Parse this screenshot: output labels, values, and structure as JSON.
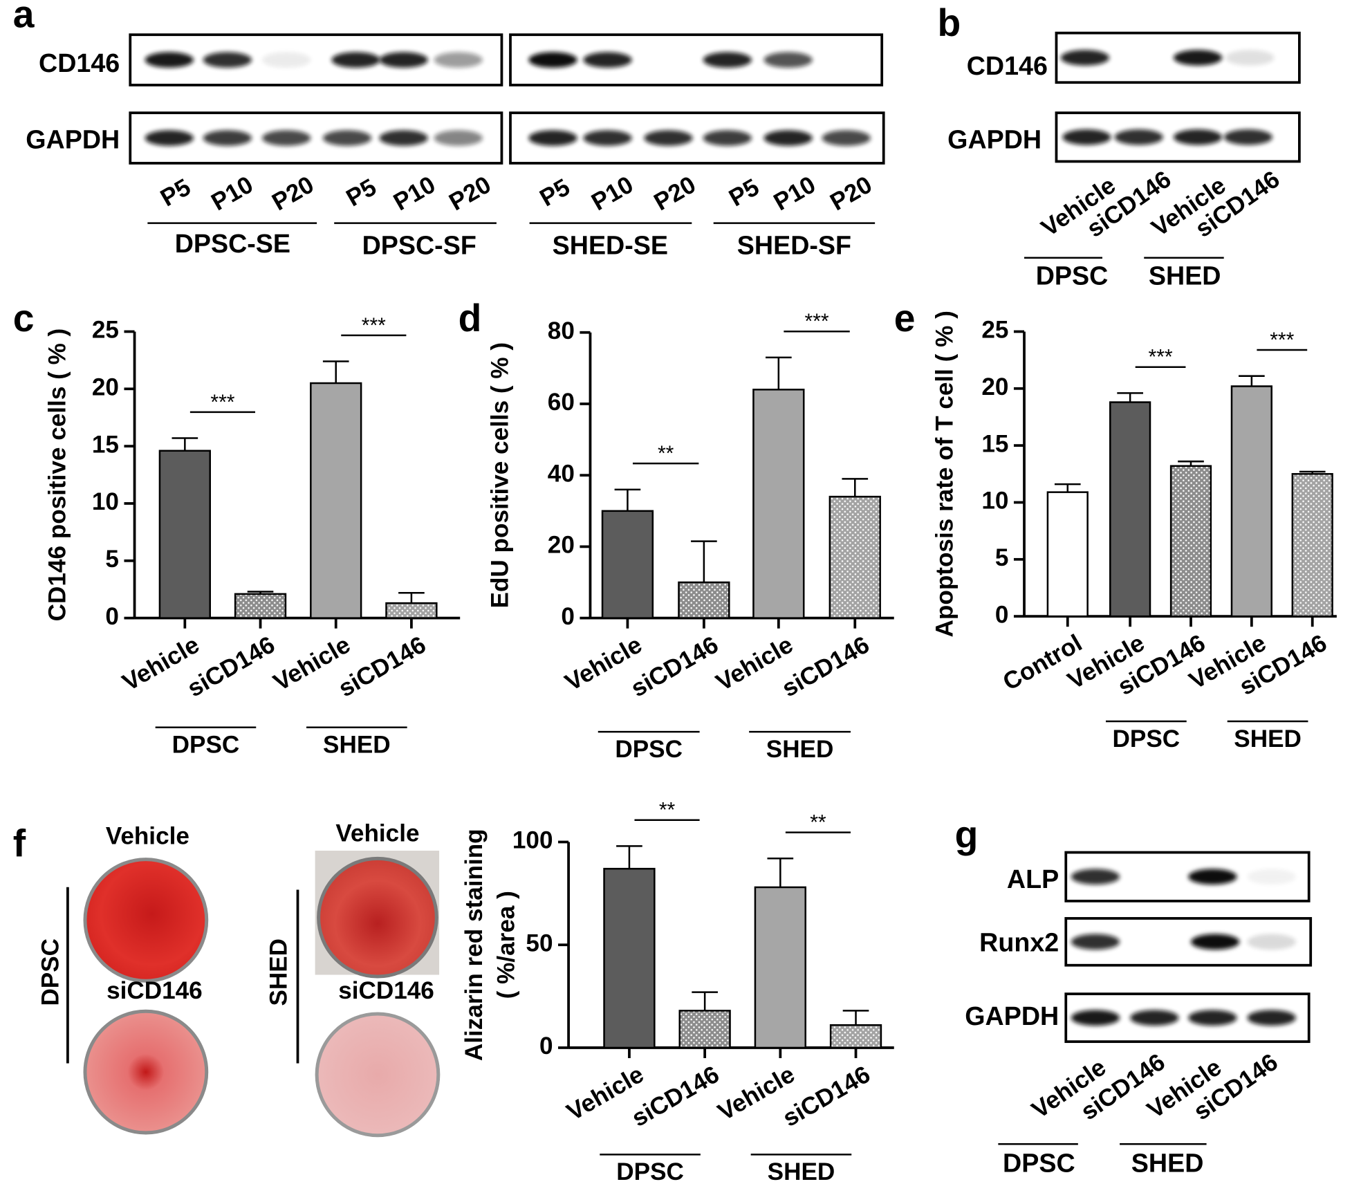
{
  "panel_labels": [
    "a",
    "b",
    "c",
    "d",
    "e",
    "f",
    "g"
  ],
  "blot_a": {
    "rows": [
      "CD146",
      "GAPDH"
    ],
    "lanes": [
      "P5",
      "P10",
      "P20",
      "P5",
      "P10",
      "P20",
      "P5",
      "P10",
      "P20",
      "P5",
      "P10",
      "P20"
    ],
    "groups": [
      "DPSC-SE",
      "DPSC-SF",
      "SHED-SE",
      "SHED-SF"
    ]
  },
  "blot_b": {
    "rows": [
      "CD146",
      "GAPDH"
    ],
    "lanes": [
      "Vehicle",
      "siCD146",
      "Vehicle",
      "siCD146"
    ],
    "groups": [
      "DPSC",
      "SHED"
    ]
  },
  "blot_g": {
    "rows": [
      "ALP",
      "Runx2",
      "GAPDH"
    ],
    "lanes": [
      "Vehicle",
      "siCD146",
      "Vehicle",
      "siCD146"
    ],
    "groups": [
      "DPSC",
      "SHED"
    ]
  },
  "staining": {
    "groups": [
      "DPSC",
      "SHED"
    ],
    "conditions": [
      [
        "Vehicle",
        "siCD146"
      ],
      [
        "Vehicle",
        "siCD146"
      ]
    ]
  },
  "chart_data": [
    {
      "type": "bar",
      "ylabel": [
        "CD146 positive cells ( % )"
      ],
      "categories": [
        "Vehicle",
        "siCD146",
        "Vehicle",
        "siCD146"
      ],
      "values": [
        14.6,
        2.1,
        20.5,
        1.3
      ],
      "errors": [
        1.1,
        0.2,
        1.9,
        0.9
      ],
      "colors": [
        "#5c5c5c",
        "#8c8c8c",
        "#a6a6a6",
        "#a3a3a3"
      ],
      "dotted": [
        false,
        true,
        false,
        true
      ],
      "groups": [
        {
          "label": "DPSC",
          "span": [
            0,
            1
          ]
        },
        {
          "label": "SHED",
          "span": [
            2,
            3
          ]
        }
      ],
      "annotations": [
        {
          "text": "***",
          "span": [
            0,
            1
          ]
        },
        {
          "text": "***",
          "span": [
            2,
            3
          ]
        }
      ],
      "ylim": [
        0,
        25
      ],
      "yticks": [
        0,
        5,
        10,
        15,
        20,
        25
      ]
    },
    {
      "type": "bar",
      "ylabel": [
        "EdU positive cells ( % )"
      ],
      "categories": [
        "Vehicle",
        "siCD146",
        "Vehicle",
        "siCD146"
      ],
      "values": [
        30,
        10,
        64,
        34
      ],
      "errors": [
        6,
        11.5,
        9,
        5
      ],
      "colors": [
        "#5c5c5c",
        "#8c8c8c",
        "#a6a6a6",
        "#a3a3a3"
      ],
      "dotted": [
        false,
        true,
        false,
        true
      ],
      "groups": [
        {
          "label": "DPSC",
          "span": [
            0,
            1
          ]
        },
        {
          "label": "SHED",
          "span": [
            2,
            3
          ]
        }
      ],
      "annotations": [
        {
          "text": "**",
          "span": [
            0,
            1
          ]
        },
        {
          "text": "***",
          "span": [
            2,
            3
          ]
        }
      ],
      "ylim": [
        0,
        80
      ],
      "yticks": [
        0,
        20,
        40,
        60,
        80
      ]
    },
    {
      "type": "bar",
      "ylabel": [
        "Apoptosis rate of T cell ( % )"
      ],
      "categories": [
        "Control",
        "Vehicle",
        "siCD146",
        "Vehicle",
        "siCD146"
      ],
      "values": [
        10.9,
        18.8,
        13.2,
        20.2,
        12.5
      ],
      "errors": [
        0.7,
        0.8,
        0.4,
        0.9,
        0.2
      ],
      "colors": [
        "#ffffff",
        "#5c5c5c",
        "#8c8c8c",
        "#a6a6a6",
        "#a3a3a3"
      ],
      "dotted": [
        false,
        false,
        true,
        false,
        true
      ],
      "groups": [
        {
          "label": "DPSC",
          "span": [
            1,
            2
          ]
        },
        {
          "label": "SHED",
          "span": [
            3,
            4
          ]
        }
      ],
      "annotations": [
        {
          "text": "***",
          "span": [
            1,
            2
          ]
        },
        {
          "text": "***",
          "span": [
            3,
            4
          ]
        }
      ],
      "ylim": [
        0,
        25
      ],
      "yticks": [
        0,
        5,
        10,
        15,
        20,
        25
      ]
    },
    {
      "type": "bar",
      "ylabel": [
        "Alizarin red staining",
        "( %/area )"
      ],
      "categories": [
        "Vehicle",
        "siCD146",
        "Vehicle",
        "siCD146"
      ],
      "values": [
        87,
        18,
        78,
        11
      ],
      "errors": [
        11,
        9,
        14,
        7
      ],
      "colors": [
        "#5c5c5c",
        "#8c8c8c",
        "#a6a6a6",
        "#a3a3a3"
      ],
      "dotted": [
        false,
        true,
        false,
        true
      ],
      "groups": [
        {
          "label": "DPSC",
          "span": [
            0,
            1
          ]
        },
        {
          "label": "SHED",
          "span": [
            2,
            3
          ]
        }
      ],
      "annotations": [
        {
          "text": "**",
          "span": [
            0,
            1
          ]
        },
        {
          "text": "**",
          "span": [
            2,
            3
          ]
        }
      ],
      "ylim": [
        0,
        100
      ],
      "yticks": [
        0,
        50,
        100
      ]
    }
  ]
}
